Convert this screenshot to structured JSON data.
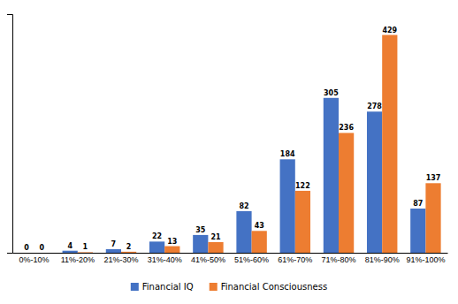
{
  "chart_data": {
    "type": "bar",
    "categories": [
      "0%-10%",
      "11%-20%",
      "21%-30%",
      "31%-40%",
      "41%-50%",
      "51%-60%",
      "61%-70%",
      "71%-80%",
      "81%-90%",
      "91%-100%"
    ],
    "series": [
      {
        "name": "Financial IQ",
        "color": "#4472C4",
        "values": [
          0,
          4,
          7,
          22,
          35,
          82,
          184,
          305,
          278,
          87
        ]
      },
      {
        "name": "Financial Consciousness",
        "color": "#ED7D31",
        "values": [
          0,
          1,
          2,
          13,
          21,
          43,
          122,
          236,
          429,
          137
        ]
      }
    ],
    "ylim": [
      0,
      470
    ],
    "yticks": [],
    "grid": false,
    "legend": "bottom",
    "data_labels": true,
    "tick_labels": "x"
  }
}
